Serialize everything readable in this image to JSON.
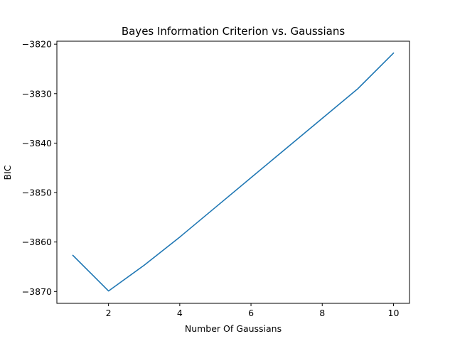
{
  "chart_data": {
    "type": "line",
    "title": "Bayes Information Criterion vs. Gaussians",
    "xlabel": "Number Of Gaussians",
    "ylabel": "BIC",
    "xlim": [
      0.55,
      10.45
    ],
    "ylim": [
      -3872.4,
      -3819.4
    ],
    "xticks": [
      2,
      4,
      6,
      8,
      10
    ],
    "xtick_labels": [
      "2",
      "4",
      "6",
      "8",
      "10"
    ],
    "yticks": [
      -3870,
      -3860,
      -3850,
      -3840,
      -3830,
      -3820
    ],
    "ytick_labels": [
      "−3870",
      "−3860",
      "−3850",
      "−3840",
      "−3830",
      "−3820"
    ],
    "grid": false,
    "series": [
      {
        "color": "#1f77b4",
        "x": [
          1,
          2,
          3,
          4,
          5,
          6,
          7,
          8,
          9,
          10
        ],
        "y": [
          -3862.7,
          -3869.9,
          -3864.7,
          -3859.0,
          -3853.0,
          -3847.0,
          -3841.0,
          -3835.0,
          -3829.0,
          -3821.8
        ]
      }
    ]
  }
}
